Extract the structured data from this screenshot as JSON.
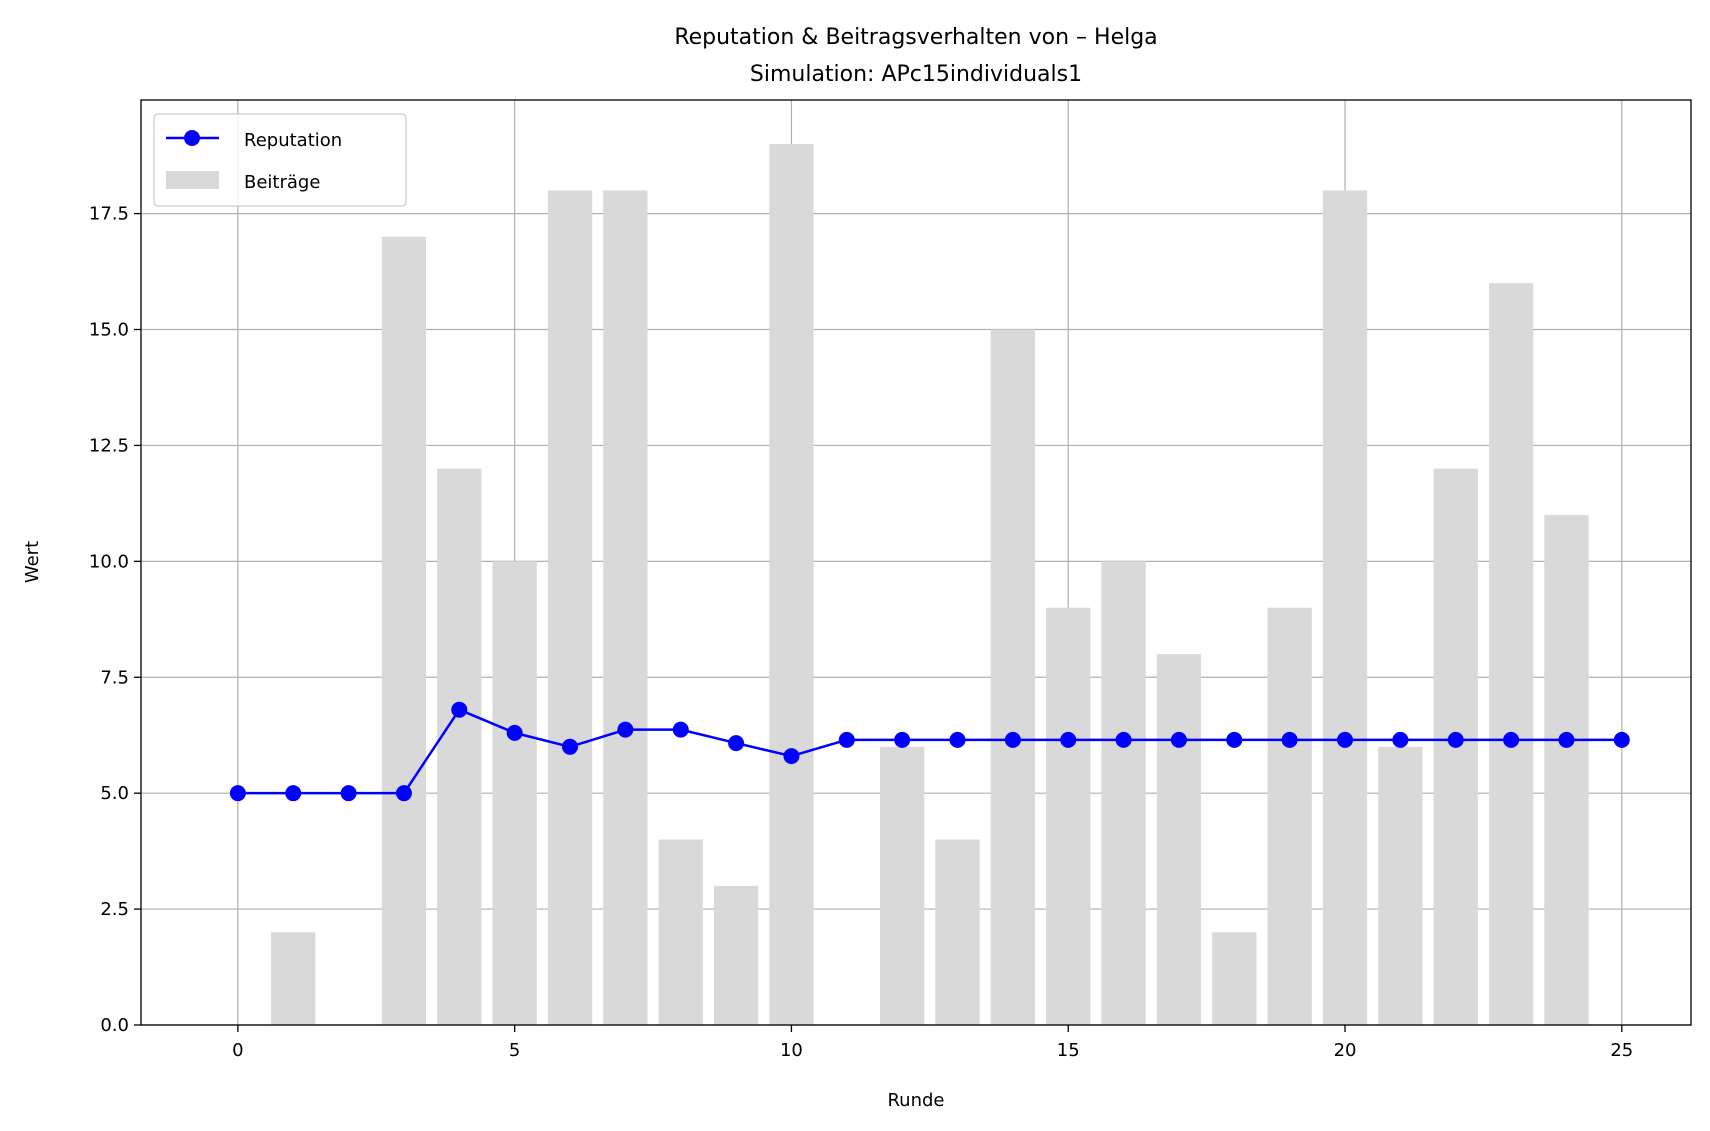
{
  "chart_data": {
    "type": "bar+line",
    "title": "Reputation & Beitragsverhalten von – Helga",
    "subtitle": "Simulation: APc15individuals1",
    "xlabel": "Runde",
    "ylabel": "Wert",
    "xlim": [
      -1.75,
      26.25
    ],
    "ylim": [
      0,
      19.95
    ],
    "x_ticks": [
      0,
      5,
      10,
      15,
      20,
      25
    ],
    "x_tick_labels": [
      "0",
      "5",
      "10",
      "15",
      "20",
      "25"
    ],
    "y_ticks": [
      0,
      2.5,
      5,
      7.5,
      10,
      12.5,
      15,
      17.5
    ],
    "y_tick_labels": [
      "0.0",
      "2.5",
      "5.0",
      "7.5",
      "10.0",
      "12.5",
      "15.0",
      "17.5"
    ],
    "grid": true,
    "legend_position": "top-left",
    "series": [
      {
        "name": "Reputation",
        "kind": "line",
        "marker": "circle",
        "color": "#0000ff",
        "x": [
          0,
          1,
          2,
          3,
          4,
          5,
          6,
          7,
          8,
          9,
          10,
          11,
          12,
          13,
          14,
          15,
          16,
          17,
          18,
          19,
          20,
          21,
          22,
          23,
          24,
          25
        ],
        "values": [
          5.0,
          5.0,
          5.0,
          5.0,
          6.8,
          6.3,
          6.0,
          6.37,
          6.37,
          6.08,
          5.8,
          6.15,
          6.15,
          6.15,
          6.15,
          6.15,
          6.15,
          6.15,
          6.15,
          6.15,
          6.15,
          6.15,
          6.15,
          6.15,
          6.15,
          6.15
        ]
      },
      {
        "name": "Beiträge",
        "kind": "bar",
        "color": "#d9d9d9",
        "x": [
          1,
          2,
          3,
          4,
          5,
          6,
          7,
          8,
          9,
          10,
          11,
          12,
          13,
          14,
          15,
          16,
          17,
          18,
          19,
          20,
          21,
          22,
          23,
          24
        ],
        "values": [
          2,
          0,
          17,
          12,
          10,
          18,
          18,
          4,
          3,
          19,
          0,
          6,
          4,
          15,
          9,
          10,
          8,
          2,
          9,
          18,
          6,
          12,
          16,
          11
        ]
      }
    ]
  }
}
